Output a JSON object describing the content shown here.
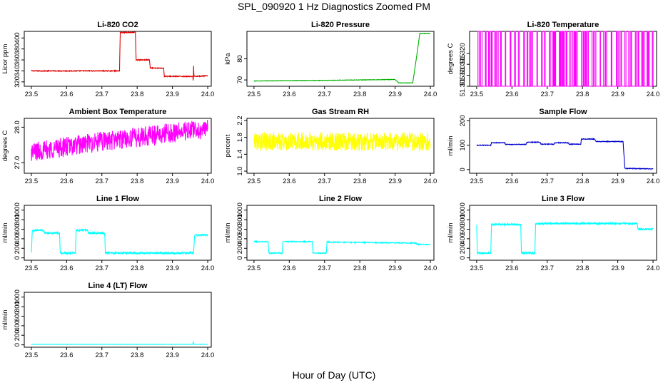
{
  "figure": {
    "title": "SPL_090920  1 Hz Diagnostics Zoomed PM",
    "xlabel": "Hour of Day (UTC)"
  },
  "chart_data": [
    {
      "type": "line",
      "title": "Li-820 CO2",
      "ylabel": "Licor ppm",
      "color": "#e00000",
      "xlim": [
        23.48,
        24.01
      ],
      "ylim": [
        312,
        412
      ],
      "xticks": [
        23.5,
        23.6,
        23.7,
        23.8,
        23.9,
        24.0
      ],
      "xticklabels": [
        "23.5",
        "23.6",
        "23.7",
        "23.8",
        "23.9",
        "24.0"
      ],
      "yticks": [
        320,
        340,
        360,
        380,
        400
      ],
      "yticklabels": [
        "320",
        "340",
        "360",
        "380",
        "400"
      ],
      "noise": 0.8,
      "series": [
        {
          "x": 23.5,
          "y": 340
        },
        {
          "x": 23.75,
          "y": 340
        },
        {
          "x": 23.752,
          "y": 410
        },
        {
          "x": 23.795,
          "y": 410
        },
        {
          "x": 23.797,
          "y": 360
        },
        {
          "x": 23.835,
          "y": 360
        },
        {
          "x": 23.837,
          "y": 345
        },
        {
          "x": 23.875,
          "y": 345
        },
        {
          "x": 23.877,
          "y": 330
        },
        {
          "x": 23.958,
          "y": 330
        },
        {
          "x": 23.959,
          "y": 318
        },
        {
          "x": 23.96,
          "y": 350
        },
        {
          "x": 23.961,
          "y": 330
        },
        {
          "x": 24.0,
          "y": 331
        }
      ]
    },
    {
      "type": "line",
      "title": "Li-820 Pressure",
      "ylabel": "kPa",
      "color": "#00b000",
      "xlim": [
        23.48,
        24.01
      ],
      "ylim": [
        67,
        93
      ],
      "xticks": [
        23.5,
        23.6,
        23.7,
        23.8,
        23.9,
        24.0
      ],
      "xticklabels": [
        "23.5",
        "23.6",
        "23.7",
        "23.8",
        "23.9",
        "24.0"
      ],
      "yticks": [
        70,
        80
      ],
      "yticklabels": [
        "70",
        "80"
      ],
      "noise": 0.1,
      "series": [
        {
          "x": 23.5,
          "y": 69.5
        },
        {
          "x": 23.7,
          "y": 69.8
        },
        {
          "x": 23.9,
          "y": 70.2
        },
        {
          "x": 23.91,
          "y": 68.6
        },
        {
          "x": 23.95,
          "y": 68.6
        },
        {
          "x": 23.96,
          "y": 80
        },
        {
          "x": 23.97,
          "y": 92
        },
        {
          "x": 24.0,
          "y": 92
        }
      ]
    },
    {
      "type": "line",
      "title": "Li-820 Temperature",
      "ylabel": "degrees C",
      "color": "#ff00ff",
      "xlim": [
        23.48,
        24.01
      ],
      "ylim": [
        51.305,
        51.33
      ],
      "xticks": [
        23.5,
        23.6,
        23.7,
        23.8,
        23.9,
        24.0
      ],
      "xticklabels": [
        "23.5",
        "23.6",
        "23.7",
        "23.8",
        "23.9",
        "24.0"
      ],
      "yticks": [
        51.305,
        51.31,
        51.315,
        51.32
      ],
      "yticklabels": [
        "51.305",
        "51.310",
        "51.315",
        "51.320"
      ],
      "binary": {
        "low": 51.305,
        "high": 51.33,
        "x0": 23.5,
        "x1": 24.0,
        "seed": 5
      },
      "series": []
    },
    {
      "type": "line",
      "title": "Ambient Box Temperature",
      "ylabel": "degrees C",
      "color": "#ff00ff",
      "xlim": [
        23.48,
        24.01
      ],
      "ylim": [
        26.7,
        28.25
      ],
      "xticks": [
        23.5,
        23.6,
        23.7,
        23.8,
        23.9,
        24.0
      ],
      "xticklabels": [
        "23.5",
        "23.6",
        "23.7",
        "23.8",
        "23.9",
        "24.0"
      ],
      "yticks": [
        27.0,
        28.0
      ],
      "yticklabels": [
        "27.0",
        "28.0"
      ],
      "noise": 0.28,
      "series": [
        {
          "x": 23.5,
          "y": 27.3
        },
        {
          "x": 23.6,
          "y": 27.45
        },
        {
          "x": 23.7,
          "y": 27.6
        },
        {
          "x": 23.8,
          "y": 27.72
        },
        {
          "x": 23.9,
          "y": 27.85
        },
        {
          "x": 24.0,
          "y": 27.95
        }
      ]
    },
    {
      "type": "line",
      "title": "Gas Stream RH",
      "ylabel": "percent",
      "color": "#ffff00",
      "xlim": [
        23.48,
        24.01
      ],
      "ylim": [
        0.95,
        2.25
      ],
      "xticks": [
        23.5,
        23.6,
        23.7,
        23.8,
        23.9,
        24.0
      ],
      "xticklabels": [
        "23.5",
        "23.6",
        "23.7",
        "23.8",
        "23.9",
        "24.0"
      ],
      "yticks": [
        1.0,
        1.4,
        1.8,
        2.2
      ],
      "yticklabels": [
        "1.0",
        "1.4",
        "1.8",
        "2.2"
      ],
      "noise": 0.22,
      "series": [
        {
          "x": 23.5,
          "y": 1.7
        },
        {
          "x": 24.0,
          "y": 1.7
        }
      ]
    },
    {
      "type": "line",
      "title": "Sample Flow",
      "ylabel": "ml/min",
      "color": "#0000cc",
      "xlim": [
        23.48,
        24.01
      ],
      "ylim": [
        -15,
        210
      ],
      "xticks": [
        23.5,
        23.6,
        23.7,
        23.8,
        23.9,
        24.0
      ],
      "xticklabels": [
        "23.5",
        "23.6",
        "23.7",
        "23.8",
        "23.9",
        "24.0"
      ],
      "yticks": [
        0,
        100,
        200
      ],
      "yticklabels": [
        "0",
        "100",
        "200"
      ],
      "noise": 1.5,
      "series": [
        {
          "x": 23.5,
          "y": 100
        },
        {
          "x": 23.54,
          "y": 100
        },
        {
          "x": 23.542,
          "y": 110
        },
        {
          "x": 23.58,
          "y": 110
        },
        {
          "x": 23.582,
          "y": 103
        },
        {
          "x": 23.64,
          "y": 103
        },
        {
          "x": 23.642,
          "y": 112
        },
        {
          "x": 23.68,
          "y": 112
        },
        {
          "x": 23.682,
          "y": 104
        },
        {
          "x": 23.72,
          "y": 104
        },
        {
          "x": 23.722,
          "y": 110
        },
        {
          "x": 23.76,
          "y": 110
        },
        {
          "x": 23.762,
          "y": 104
        },
        {
          "x": 23.795,
          "y": 104
        },
        {
          "x": 23.797,
          "y": 125
        },
        {
          "x": 23.835,
          "y": 125
        },
        {
          "x": 23.837,
          "y": 115
        },
        {
          "x": 23.915,
          "y": 115
        },
        {
          "x": 23.92,
          "y": 5
        },
        {
          "x": 24.0,
          "y": 3
        }
      ]
    },
    {
      "type": "line",
      "title": "Line 1 Flow",
      "ylabel": "ml/min",
      "color": "#00ffff",
      "xlim": [
        23.48,
        24.01
      ],
      "ylim": [
        -50,
        1100
      ],
      "xticks": [
        23.5,
        23.6,
        23.7,
        23.8,
        23.9,
        24.0
      ],
      "xticklabels": [
        "23.5",
        "23.6",
        "23.7",
        "23.8",
        "23.9",
        "24.0"
      ],
      "yticks": [
        0,
        200,
        400,
        600,
        800,
        1000
      ],
      "yticklabels": [
        "0",
        "200",
        "400",
        "600",
        "800",
        "1000"
      ],
      "noise": 20,
      "series": [
        {
          "x": 23.5,
          "y": 100
        },
        {
          "x": 23.503,
          "y": 580
        },
        {
          "x": 23.535,
          "y": 580
        },
        {
          "x": 23.537,
          "y": 520
        },
        {
          "x": 23.58,
          "y": 520
        },
        {
          "x": 23.582,
          "y": 100
        },
        {
          "x": 23.625,
          "y": 100
        },
        {
          "x": 23.627,
          "y": 580
        },
        {
          "x": 23.66,
          "y": 580
        },
        {
          "x": 23.662,
          "y": 520
        },
        {
          "x": 23.708,
          "y": 520
        },
        {
          "x": 23.71,
          "y": 100
        },
        {
          "x": 23.96,
          "y": 100
        },
        {
          "x": 23.963,
          "y": 480
        },
        {
          "x": 24.0,
          "y": 480
        }
      ]
    },
    {
      "type": "line",
      "title": "Line 2 Flow",
      "ylabel": "ml/min",
      "color": "#00ffff",
      "xlim": [
        23.48,
        24.01
      ],
      "ylim": [
        -50,
        1100
      ],
      "xticks": [
        23.5,
        23.6,
        23.7,
        23.8,
        23.9,
        24.0
      ],
      "xticklabels": [
        "23.5",
        "23.6",
        "23.7",
        "23.8",
        "23.9",
        "24.0"
      ],
      "yticks": [
        0,
        200,
        400,
        600,
        800,
        1000
      ],
      "yticklabels": [
        "0",
        "200",
        "400",
        "600",
        "800",
        "1000"
      ],
      "noise": 10,
      "series": [
        {
          "x": 23.5,
          "y": 340
        },
        {
          "x": 23.54,
          "y": 340
        },
        {
          "x": 23.542,
          "y": 100
        },
        {
          "x": 23.58,
          "y": 100
        },
        {
          "x": 23.582,
          "y": 340
        },
        {
          "x": 23.665,
          "y": 340
        },
        {
          "x": 23.667,
          "y": 100
        },
        {
          "x": 23.705,
          "y": 100
        },
        {
          "x": 23.707,
          "y": 330
        },
        {
          "x": 23.96,
          "y": 310
        },
        {
          "x": 23.962,
          "y": 280
        },
        {
          "x": 24.0,
          "y": 280
        }
      ]
    },
    {
      "type": "line",
      "title": "Line 3 Flow",
      "ylabel": "ml/min",
      "color": "#00ffff",
      "xlim": [
        23.48,
        24.01
      ],
      "ylim": [
        -50,
        1100
      ],
      "xticks": [
        23.5,
        23.6,
        23.7,
        23.8,
        23.9,
        24.0
      ],
      "xticklabels": [
        "23.5",
        "23.6",
        "23.7",
        "23.8",
        "23.9",
        "24.0"
      ],
      "yticks": [
        0,
        200,
        400,
        600,
        800,
        1000
      ],
      "yticklabels": [
        "0",
        "200",
        "400",
        "600",
        "800",
        "1000"
      ],
      "noise": 18,
      "series": [
        {
          "x": 23.5,
          "y": 680
        },
        {
          "x": 23.502,
          "y": 100
        },
        {
          "x": 23.54,
          "y": 100
        },
        {
          "x": 23.542,
          "y": 700
        },
        {
          "x": 23.625,
          "y": 700
        },
        {
          "x": 23.627,
          "y": 100
        },
        {
          "x": 23.665,
          "y": 100
        },
        {
          "x": 23.667,
          "y": 710
        },
        {
          "x": 23.7,
          "y": 720
        },
        {
          "x": 23.955,
          "y": 720
        },
        {
          "x": 23.957,
          "y": 600
        },
        {
          "x": 24.0,
          "y": 600
        }
      ]
    },
    {
      "type": "line",
      "title": "Line 4 (LT) Flow",
      "ylabel": "ml/min",
      "color": "#00ffff",
      "xlim": [
        23.48,
        24.01
      ],
      "ylim": [
        -50,
        1100
      ],
      "xticks": [
        23.5,
        23.6,
        23.7,
        23.8,
        23.9,
        24.0
      ],
      "xticklabels": [
        "23.5",
        "23.6",
        "23.7",
        "23.8",
        "23.9",
        "24.0"
      ],
      "yticks": [
        0,
        200,
        400,
        600,
        800,
        1000
      ],
      "yticklabels": [
        "0",
        "200",
        "400",
        "600",
        "800",
        "1000"
      ],
      "noise": 2,
      "series": [
        {
          "x": 23.5,
          "y": 10
        },
        {
          "x": 23.958,
          "y": 10
        },
        {
          "x": 23.959,
          "y": 80
        },
        {
          "x": 23.96,
          "y": 10
        },
        {
          "x": 24.0,
          "y": 10
        }
      ]
    }
  ]
}
